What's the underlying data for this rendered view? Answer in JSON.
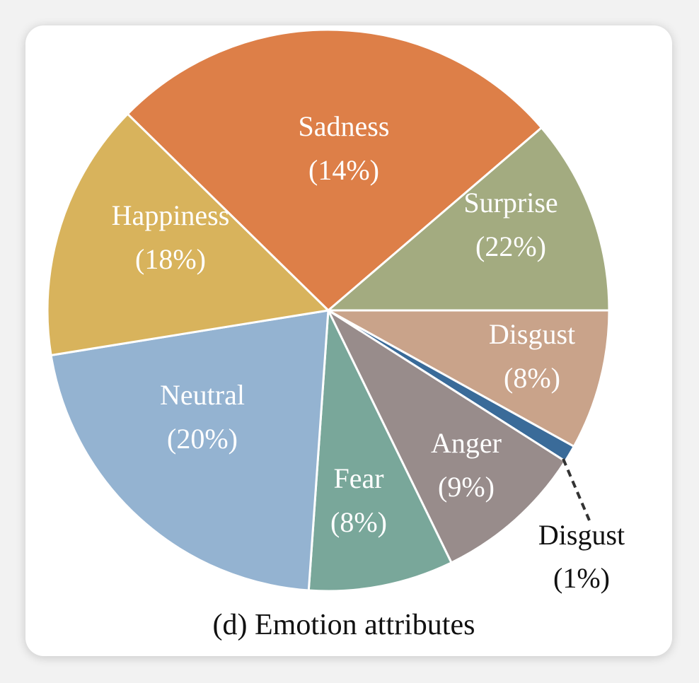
{
  "chart_data": {
    "type": "pie",
    "title": "(d) Emotion attributes",
    "slices": [
      {
        "label": "Sadness",
        "value_label": "(14%)",
        "value": 14,
        "color": "#dd7f48"
      },
      {
        "label": "Surprise",
        "value_label": "(22%)",
        "value": 22,
        "color": "#a3ab80"
      },
      {
        "label": "Disgust",
        "value_label": "(8%)",
        "value": 8,
        "color": "#c9a38a"
      },
      {
        "label": "Disgust",
        "value_label": "(1%)",
        "value": 1,
        "color": "#3a6b99"
      },
      {
        "label": "Anger",
        "value_label": "(9%)",
        "value": 9,
        "color": "#988c8b"
      },
      {
        "label": "Fear",
        "value_label": "(8%)",
        "value": 8,
        "color": "#79a79a"
      },
      {
        "label": "Neutral",
        "value_label": "(20%)",
        "value": 20,
        "color": "#94b3d1"
      },
      {
        "label": "Happiness",
        "value_label": "(18%)",
        "value": 18,
        "color": "#d8b35c"
      }
    ]
  }
}
